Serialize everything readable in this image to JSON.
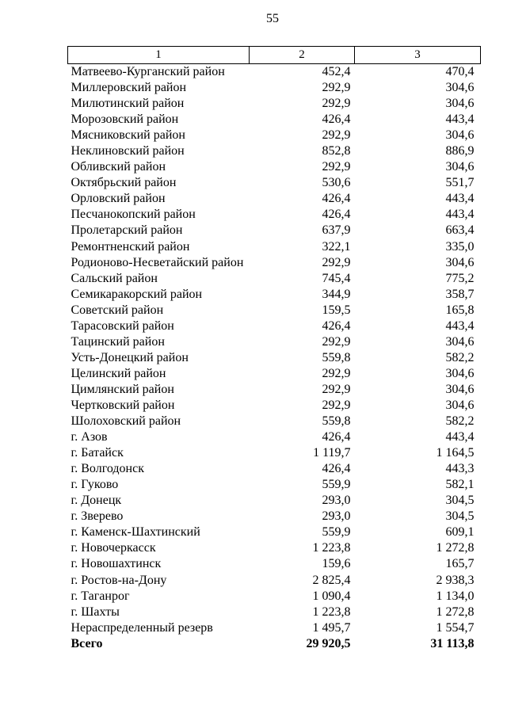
{
  "page": {
    "number": "55"
  },
  "table": {
    "columns": [
      "1",
      "2",
      "3"
    ],
    "rows": [
      {
        "name": "Матвеево-Курганский район",
        "col2": "452,4",
        "col3": "470,4"
      },
      {
        "name": "Миллеровский район",
        "col2": "292,9",
        "col3": "304,6"
      },
      {
        "name": "Милютинский район",
        "col2": "292,9",
        "col3": "304,6"
      },
      {
        "name": "Морозовский район",
        "col2": "426,4",
        "col3": "443,4"
      },
      {
        "name": "Мясниковский район",
        "col2": "292,9",
        "col3": "304,6"
      },
      {
        "name": "Неклиновский район",
        "col2": "852,8",
        "col3": "886,9"
      },
      {
        "name": "Обливский район",
        "col2": "292,9",
        "col3": "304,6"
      },
      {
        "name": "Октябрьский район",
        "col2": "530,6",
        "col3": "551,7"
      },
      {
        "name": "Орловский район",
        "col2": "426,4",
        "col3": "443,4"
      },
      {
        "name": "Песчанокопский район",
        "col2": "426,4",
        "col3": "443,4"
      },
      {
        "name": "Пролетарский район",
        "col2": "637,9",
        "col3": "663,4"
      },
      {
        "name": "Ремонтненский район",
        "col2": "322,1",
        "col3": "335,0"
      },
      {
        "name": "Родионово-Несветайский район",
        "col2": "292,9",
        "col3": "304,6"
      },
      {
        "name": "Сальский район",
        "col2": "745,4",
        "col3": "775,2"
      },
      {
        "name": "Семикаракорский район",
        "col2": "344,9",
        "col3": "358,7"
      },
      {
        "name": "Советский район",
        "col2": "159,5",
        "col3": "165,8"
      },
      {
        "name": "Тарасовский район",
        "col2": "426,4",
        "col3": "443,4"
      },
      {
        "name": "Тацинский район",
        "col2": "292,9",
        "col3": "304,6"
      },
      {
        "name": "Усть-Донецкий район",
        "col2": "559,8",
        "col3": "582,2"
      },
      {
        "name": "Целинский район",
        "col2": "292,9",
        "col3": "304,6"
      },
      {
        "name": "Цимлянский район",
        "col2": "292,9",
        "col3": "304,6"
      },
      {
        "name": "Чертковский район",
        "col2": "292,9",
        "col3": "304,6"
      },
      {
        "name": "Шолоховский район",
        "col2": "559,8",
        "col3": "582,2"
      },
      {
        "name": "г. Азов",
        "col2": "426,4",
        "col3": "443,4"
      },
      {
        "name": "г. Батайск",
        "col2": "1 119,7",
        "col3": "1 164,5"
      },
      {
        "name": "г. Волгодонск",
        "col2": "426,4",
        "col3": "443,3"
      },
      {
        "name": "г. Гуково",
        "col2": "559,9",
        "col3": "582,1"
      },
      {
        "name": "г. Донецк",
        "col2": "293,0",
        "col3": "304,5"
      },
      {
        "name": "г. Зверево",
        "col2": "293,0",
        "col3": "304,5"
      },
      {
        "name": "г. Каменск-Шахтинский",
        "col2": "559,9",
        "col3": "609,1"
      },
      {
        "name": "г. Новочеркасск",
        "col2": "1 223,8",
        "col3": "1 272,8"
      },
      {
        "name": "г. Новошахтинск",
        "col2": "159,6",
        "col3": "165,7"
      },
      {
        "name": "г. Ростов-на-Дону",
        "col2": "2 825,4",
        "col3": "2 938,3"
      },
      {
        "name": "г. Таганрог",
        "col2": "1 090,4",
        "col3": "1 134,0"
      },
      {
        "name": "г. Шахты",
        "col2": "1 223,8",
        "col3": "1 272,8"
      },
      {
        "name": "Нераспределенный резерв",
        "col2": "1 495,7",
        "col3": "1 554,7"
      },
      {
        "name": "Всего",
        "col2": "29 920,5",
        "col3": "31 113,8",
        "bold": true
      }
    ]
  }
}
